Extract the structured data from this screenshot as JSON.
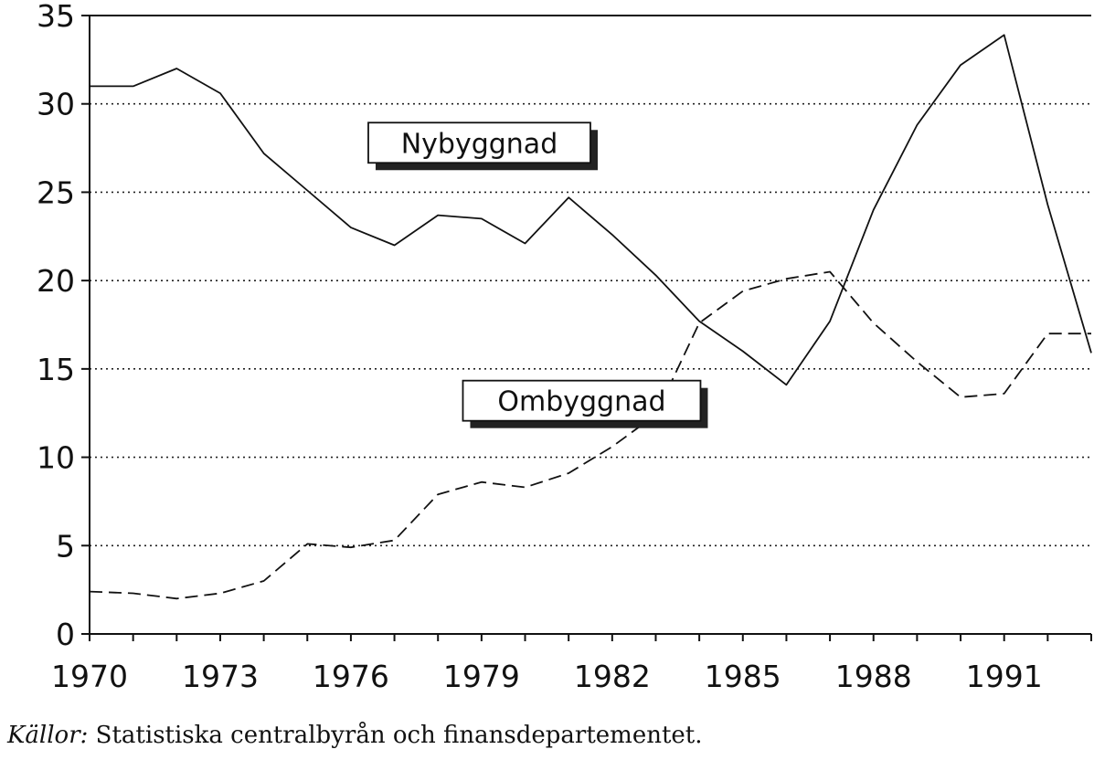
{
  "chart_data": {
    "type": "line",
    "x": [
      1970,
      1971,
      1972,
      1973,
      1974,
      1975,
      1976,
      1977,
      1978,
      1979,
      1980,
      1981,
      1982,
      1983,
      1984,
      1985,
      1986,
      1987,
      1988,
      1989,
      1990,
      1991,
      1992,
      1993
    ],
    "series": [
      {
        "name": "Nybyggnad",
        "line_style": "solid",
        "values": [
          31.0,
          31.0,
          32.0,
          30.6,
          27.2,
          25.1,
          23.0,
          22.0,
          23.7,
          23.5,
          22.1,
          24.7,
          22.6,
          20.3,
          17.7,
          16.0,
          14.1,
          17.7,
          24.0,
          28.8,
          32.2,
          33.9,
          24.3,
          15.9
        ]
      },
      {
        "name": "Ombyggnad",
        "line_style": "dashed",
        "values": [
          2.4,
          2.3,
          2.0,
          2.3,
          3.0,
          5.1,
          4.9,
          5.3,
          7.9,
          8.6,
          8.3,
          9.1,
          10.6,
          12.4,
          17.6,
          19.4,
          20.1,
          20.5,
          17.6,
          15.4,
          13.4,
          13.6,
          17.0,
          17.0
        ]
      }
    ],
    "xlim": [
      1970,
      1993
    ],
    "ylim": [
      0,
      35
    ],
    "x_ticks": [
      "1970",
      "1973",
      "1976",
      "1979",
      "1982",
      "1985",
      "1988",
      "1991"
    ],
    "y_ticks": [
      "0",
      "5",
      "10",
      "15",
      "20",
      "25",
      "30",
      "35"
    ],
    "grid": "horizontal dotted",
    "legend": "labels inside plot"
  },
  "source": {
    "prefix": "Källor:",
    "text": " Statistiska centralbyrån och finansdepartementet."
  }
}
